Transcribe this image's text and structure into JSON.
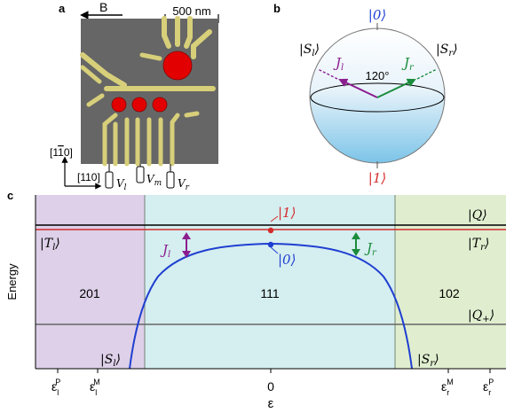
{
  "panels": {
    "a": {
      "label": "a",
      "field_label": "B",
      "scalebar": "500 nm",
      "axis_1": "[1",
      "axis_1_bar": "1",
      "axis_1_end": "0]",
      "axis_2": "[110]",
      "gates": [
        {
          "label": "V",
          "sub": "l"
        },
        {
          "label": "V",
          "sub": "m"
        },
        {
          "label": "V",
          "sub": "r"
        }
      ]
    },
    "b": {
      "label": "b",
      "top_state": "|0⟩",
      "bottom_state": "|1⟩",
      "left_state_base": "|S",
      "left_state_sub": "l",
      "right_state_base": "|S",
      "right_state_sub": "r",
      "j_left_base": "J",
      "j_left_sub": "l",
      "j_right_base": "J",
      "j_right_sub": "r",
      "angle": "120°",
      "colors": {
        "j_left": "#8b1d8f",
        "j_right": "#1a8c3c",
        "top": "#1f3fd1",
        "bottom": "#d42b2b"
      }
    },
    "c": {
      "label": "c",
      "ylabel": "Energy",
      "xlabel": "ε",
      "region_labels": [
        "201",
        "111",
        "102"
      ],
      "states": {
        "Q": "|Q⟩",
        "Tl_base": "|T",
        "Tl_sub": "l",
        "Tr_base": "|T",
        "Tr_sub": "r",
        "Qplus_base": "|Q",
        "Qplus_sub": "+",
        "Sl_base": "|S",
        "Sl_sub": "l",
        "Sr_base": "|S",
        "Sr_sub": "r",
        "one": "|1⟩",
        "zero": "|0⟩",
        "Jl_base": "J",
        "Jl_sub": "l",
        "Jr_base": "J",
        "Jr_sub": "r"
      },
      "xticks": [
        {
          "base": "ε",
          "sub": "l",
          "sup": "P"
        },
        {
          "base": "ε",
          "sub": "l",
          "sup": "M"
        },
        {
          "base": "0",
          "sub": "",
          "sup": ""
        },
        {
          "base": "ε",
          "sub": "r",
          "sup": "M"
        },
        {
          "base": "ε",
          "sub": "r",
          "sup": "P"
        }
      ],
      "colors": {
        "left_region": "#ddd0e8",
        "middle_region": "#d5eef0",
        "right_region": "#e0eecf",
        "red": "#d42b2b",
        "blue": "#1f3fd1",
        "black": "#000000",
        "gray": "#666666"
      }
    }
  }
}
